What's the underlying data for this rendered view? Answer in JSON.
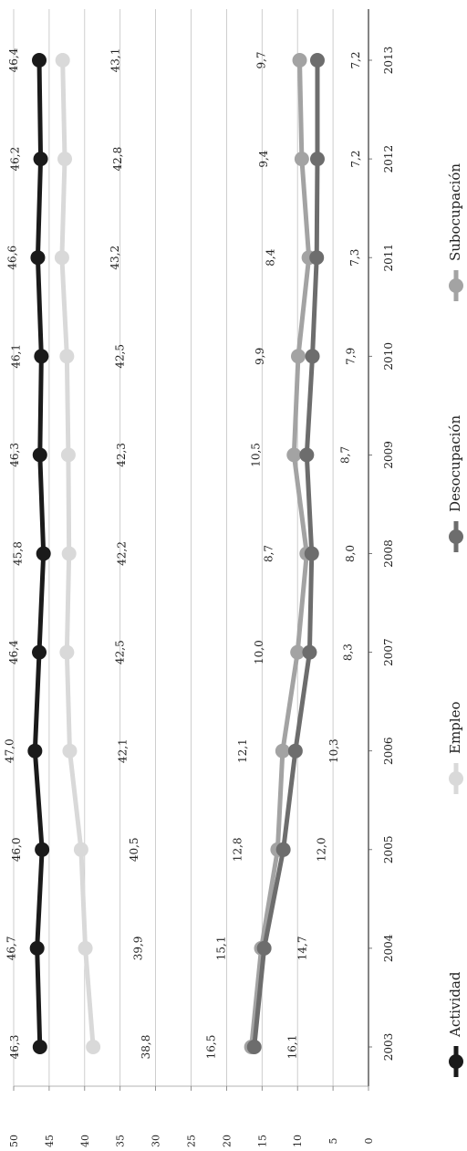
{
  "chart_data": {
    "type": "line",
    "title": "",
    "xlabel": "",
    "ylabel": "",
    "categories": [
      "2003",
      "2004",
      "2005",
      "2006",
      "2007",
      "2008",
      "2009",
      "2010",
      "2011",
      "2012",
      "2013"
    ],
    "ylim": [
      0,
      50
    ],
    "yticks": [
      "0",
      "5",
      "10",
      "15",
      "20",
      "25",
      "30",
      "35",
      "40",
      "45",
      "50"
    ],
    "grid": true,
    "orientation": "rotated 90° clockwise (years run down the page)",
    "legend_position": "bottom",
    "series": [
      {
        "name": "Actividad",
        "color": "#1a1a1a",
        "values": [
          46.3,
          46.7,
          46.0,
          47.0,
          46.4,
          45.8,
          46.3,
          46.1,
          46.6,
          46.2,
          46.4
        ],
        "labels": [
          "46,3",
          "46,7",
          "46,0",
          "47,0",
          "46,4",
          "45,8",
          "46,3",
          "46,1",
          "46,6",
          "46,2",
          "46,4"
        ]
      },
      {
        "name": "Empleo",
        "color": "#d9d9d9",
        "values": [
          38.8,
          39.9,
          40.5,
          42.1,
          42.5,
          42.2,
          42.3,
          42.5,
          43.2,
          42.8,
          43.1
        ],
        "labels": [
          "38,8",
          "39,9",
          "40,5",
          "42,1",
          "42,5",
          "42,2",
          "42,3",
          "42,5",
          "43,2",
          "42,8",
          "43,1"
        ]
      },
      {
        "name": "Desocupación",
        "color": "#6d6d6d",
        "values": [
          16.1,
          14.7,
          12.0,
          10.3,
          8.3,
          8.0,
          8.7,
          7.9,
          7.3,
          7.2,
          7.2
        ],
        "labels": [
          "16,1",
          "14,7",
          "12,0",
          "10,3",
          "8,3",
          "8,0",
          "8,7",
          "7,9",
          "7,3",
          "7,2",
          "7,2"
        ]
      },
      {
        "name": "Subocupación",
        "color": "#a3a3a3",
        "values": [
          16.5,
          15.1,
          12.8,
          12.1,
          10.0,
          8.7,
          10.5,
          9.9,
          8.4,
          9.4,
          9.7
        ],
        "labels": [
          "16,5",
          "15,1",
          "12,8",
          "12,1",
          "10,0",
          "8,7",
          "10,5",
          "9,9",
          "8,4",
          "9,4",
          "9,7"
        ]
      }
    ]
  }
}
